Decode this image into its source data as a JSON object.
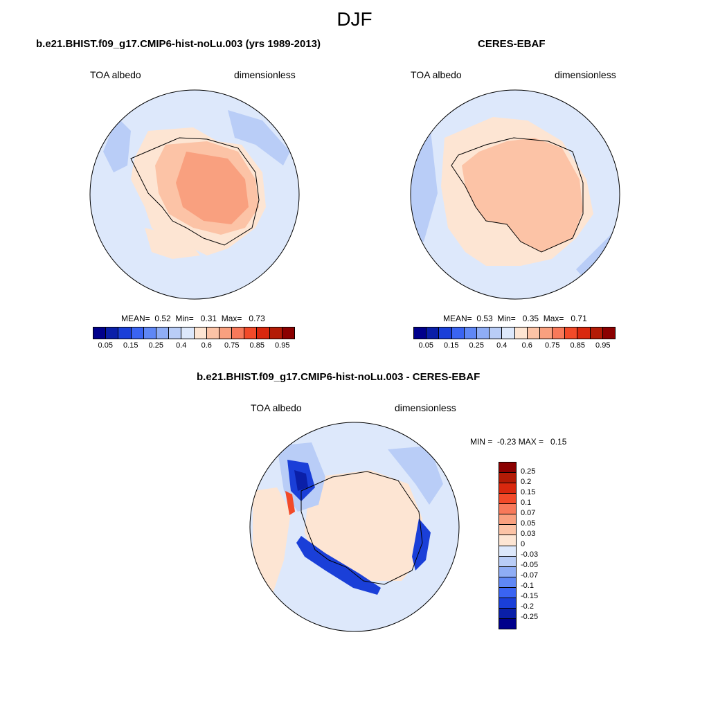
{
  "title": "DJF",
  "panels": {
    "model": {
      "title": "b.e21.BHIST.f09_g17.CMIP6-hist-noLu.003 (yrs 1989-2013)",
      "left_label": "TOA albedo",
      "right_label": "dimensionless",
      "stats": "MEAN=  0.52  Min=   0.31  Max=   0.73",
      "mean": 0.52,
      "min": 0.31,
      "max": 0.73
    },
    "obs": {
      "title": "CERES-EBAF",
      "left_label": "TOA albedo",
      "right_label": "dimensionless",
      "stats": "MEAN=  0.53  Min=   0.35  Max=   0.71",
      "mean": 0.53,
      "min": 0.35,
      "max": 0.71
    },
    "diff": {
      "title": "b.e21.BHIST.f09_g17.CMIP6-hist-noLu.003 - CERES-EBAF",
      "left_label": "TOA albedo",
      "right_label": "dimensionless",
      "stats": "MIN =  -0.23 MAX =   0.15",
      "min": -0.23,
      "max": 0.15
    }
  },
  "colorbar_abs": {
    "tick_labels": [
      "0.05",
      "0.15",
      "0.25",
      "0.4",
      "0.6",
      "0.75",
      "0.85",
      "0.95"
    ],
    "colors": [
      "#00008b",
      "#0a1fa8",
      "#1a3fd8",
      "#3a64f2",
      "#5f87f5",
      "#8fadf5",
      "#b9cdf7",
      "#dde8fb",
      "#fde5d3",
      "#fcc3a6",
      "#f9a07f",
      "#f7795a",
      "#f24a29",
      "#d9280e",
      "#b31b06",
      "#8b0000"
    ]
  },
  "colorbar_diff": {
    "labels": [
      "0.25",
      "0.2",
      "0.15",
      "0.1",
      "0.07",
      "0.05",
      "0.03",
      "0",
      "-0.03",
      "-0.05",
      "-0.07",
      "-0.1",
      "-0.15",
      "-0.2",
      "-0.25"
    ],
    "colors": [
      "#8b0000",
      "#b31b06",
      "#d9280e",
      "#f24a29",
      "#f7795a",
      "#f9a07f",
      "#fcc3a6",
      "#fde5d3",
      "#dde8fb",
      "#b9cdf7",
      "#8fadf5",
      "#5f87f5",
      "#3a64f2",
      "#1a3fd8",
      "#0a1fa8",
      "#00008b"
    ]
  },
  "map_colors": {
    "ocean_light": "#dde8fb",
    "ocean_mid": "#b9cdf7",
    "ice_light": "#fde5d3",
    "ice_mid": "#fcc3a6",
    "ice_high": "#f9a07f",
    "neg_strong": "#1a3fd8",
    "neg_deep": "#0a1fa8",
    "pos_strong": "#f24a29"
  }
}
